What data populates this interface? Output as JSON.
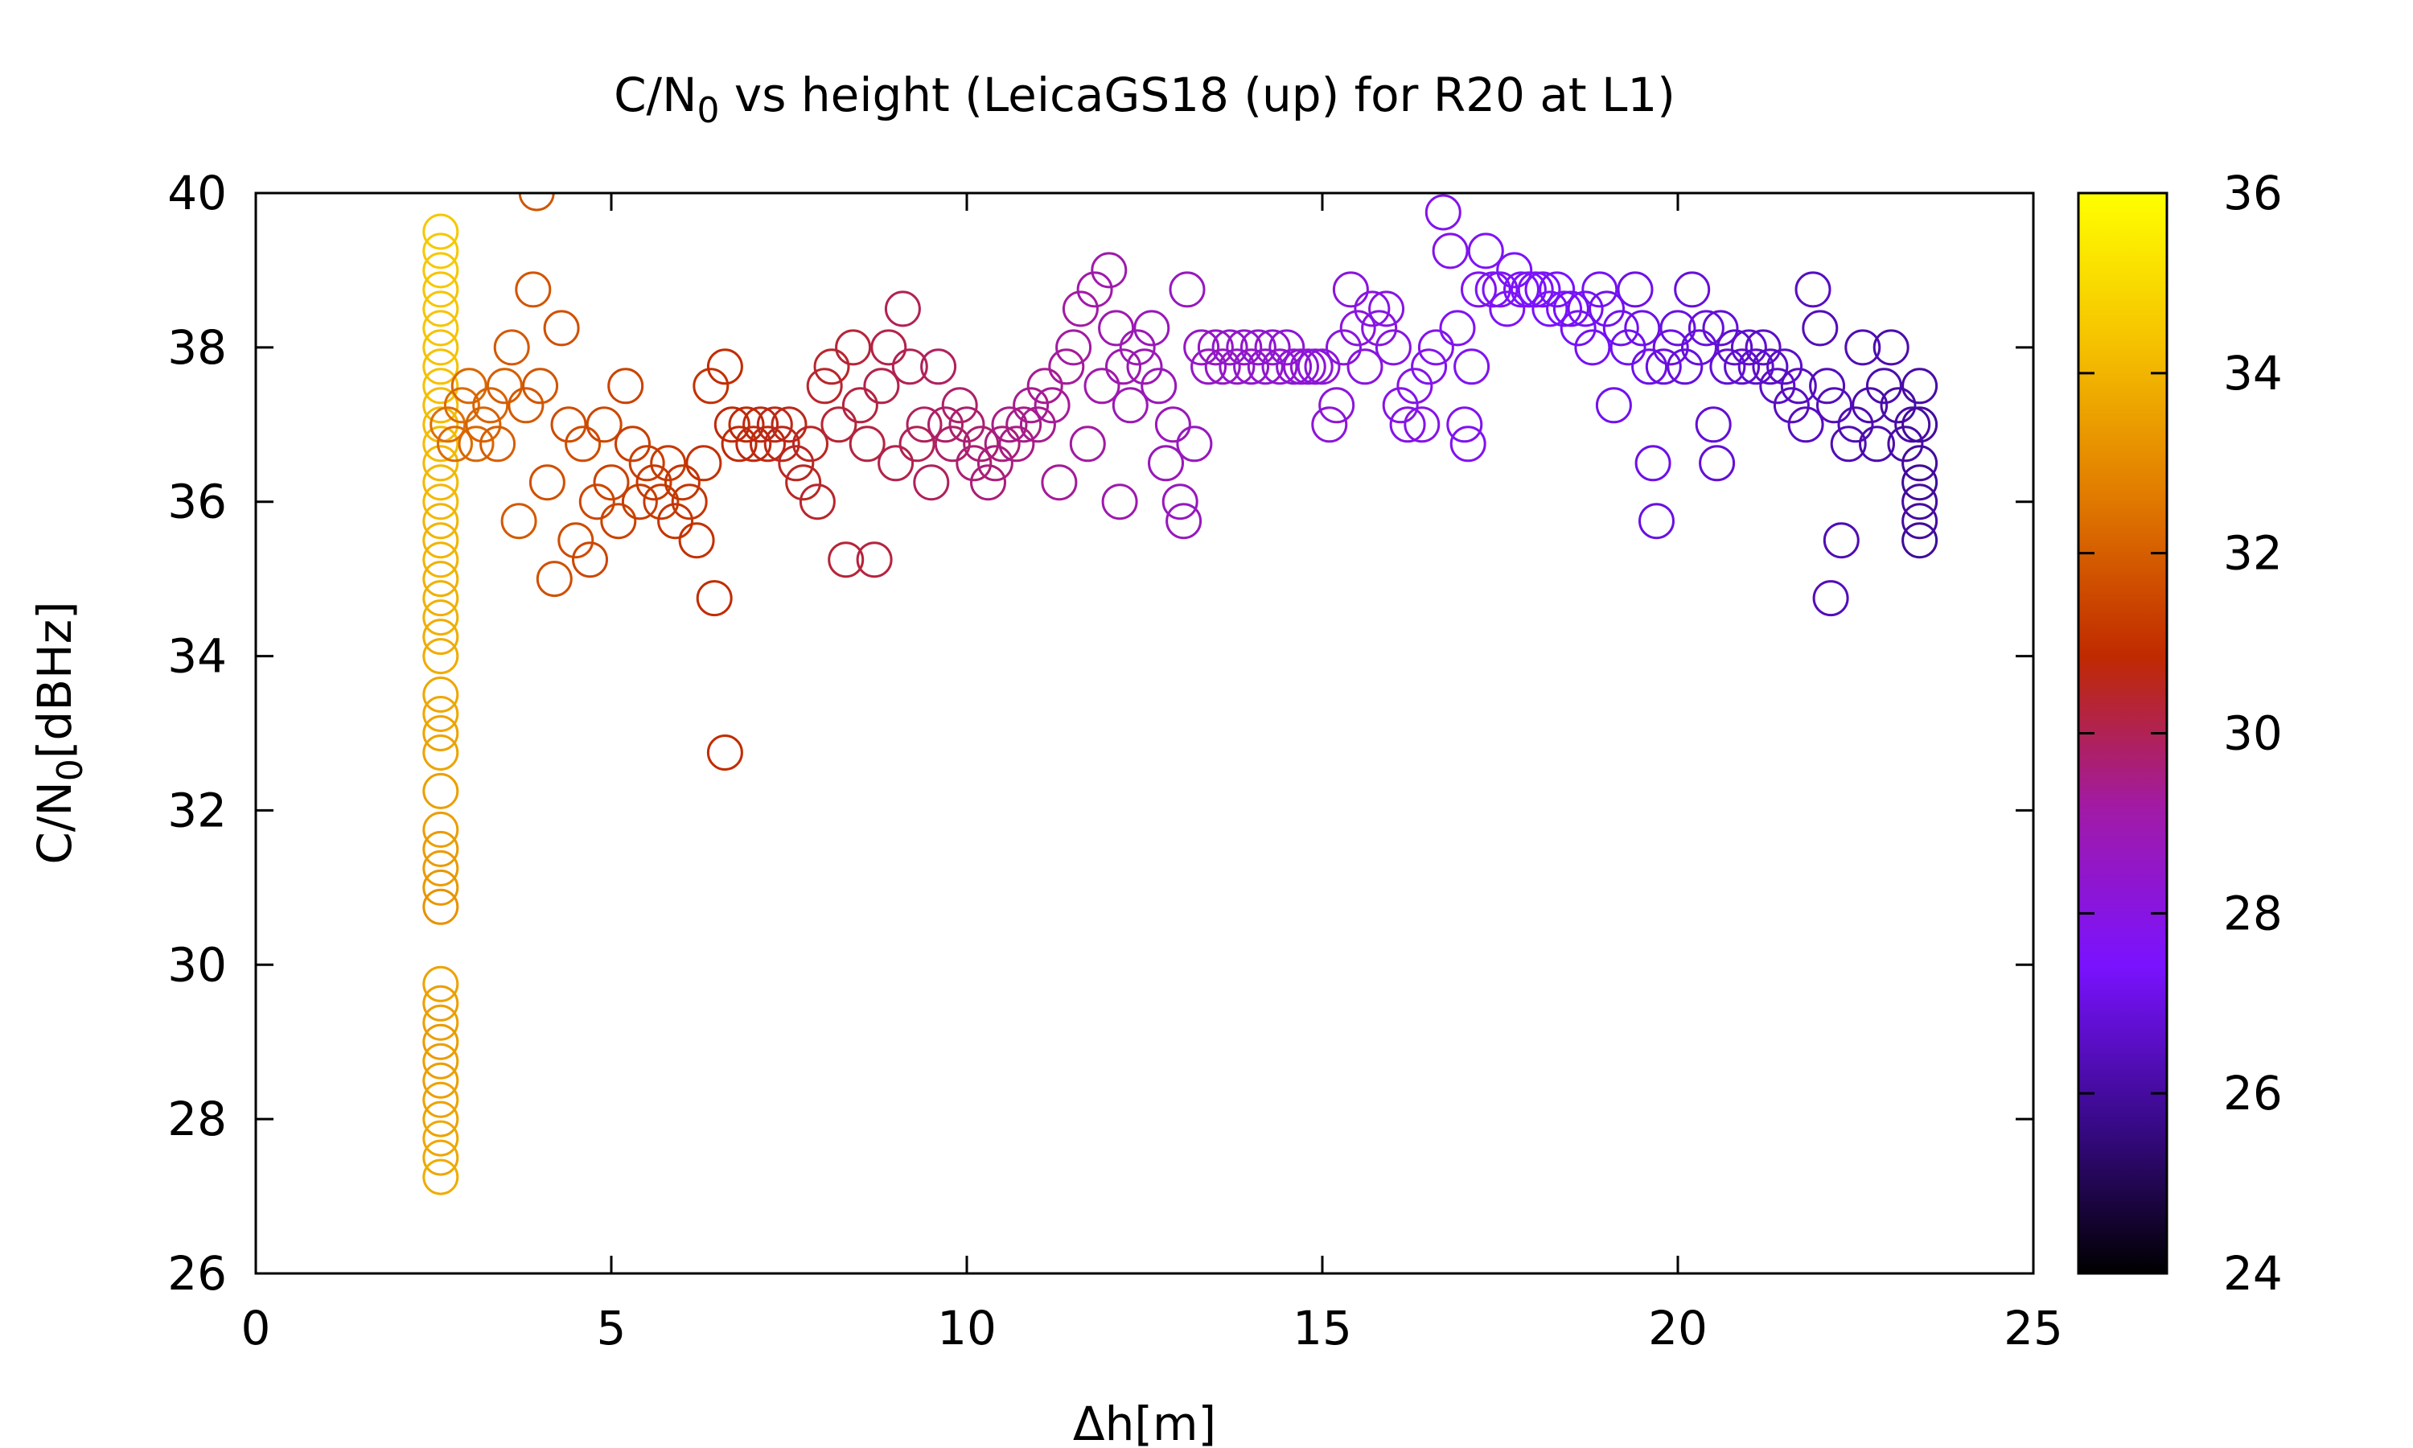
{
  "chart_data": {
    "type": "scatter",
    "title": {
      "prefix": "C/N",
      "subscript": "0",
      "suffix": " vs height (LeicaGS18 (up) for R20 at L1)"
    },
    "xlabel": "Δh[m]",
    "ylabel": {
      "prefix": "C/N",
      "subscript": "0",
      "suffix": "[dBHz]"
    },
    "xlim": [
      0,
      25
    ],
    "ylim": [
      26,
      40
    ],
    "xticks": [
      0,
      5,
      10,
      15,
      20,
      25
    ],
    "yticks": [
      26,
      28,
      30,
      32,
      34,
      36,
      38,
      40
    ],
    "colorbar": {
      "range": [
        24,
        36
      ],
      "ticks": [
        24,
        26,
        28,
        30,
        32,
        34,
        36
      ],
      "palette": [
        "#000000",
        "#3a0a8c",
        "#7a12ff",
        "#a11aa8",
        "#c02a00",
        "#e07800",
        "#f5c000",
        "#ffff00"
      ]
    },
    "series_marker": "open-circle",
    "points": [
      [
        2.6,
        39.5,
        34.5
      ],
      [
        2.6,
        39.25,
        34.5
      ],
      [
        2.6,
        39.0,
        34.5
      ],
      [
        2.6,
        38.75,
        34.4
      ],
      [
        2.6,
        38.5,
        34.4
      ],
      [
        2.6,
        38.25,
        34.4
      ],
      [
        2.6,
        38.0,
        34.3
      ],
      [
        2.6,
        37.75,
        34.3
      ],
      [
        2.6,
        37.5,
        34.3
      ],
      [
        2.6,
        37.25,
        34.2
      ],
      [
        2.6,
        37.0,
        34.2
      ],
      [
        2.6,
        36.75,
        34.2
      ],
      [
        2.6,
        36.5,
        34.1
      ],
      [
        2.6,
        36.25,
        34.1
      ],
      [
        2.6,
        36.0,
        34.1
      ],
      [
        2.6,
        35.75,
        34.0
      ],
      [
        2.6,
        35.5,
        34.0
      ],
      [
        2.6,
        35.25,
        34.0
      ],
      [
        2.6,
        35.0,
        33.9
      ],
      [
        2.6,
        34.75,
        33.9
      ],
      [
        2.6,
        34.5,
        33.9
      ],
      [
        2.6,
        34.25,
        33.8
      ],
      [
        2.6,
        34.0,
        33.8
      ],
      [
        2.6,
        33.5,
        33.7
      ],
      [
        2.6,
        33.25,
        33.7
      ],
      [
        2.6,
        33.0,
        33.6
      ],
      [
        2.6,
        32.75,
        33.6
      ],
      [
        2.6,
        32.25,
        33.5
      ],
      [
        2.6,
        31.75,
        33.5
      ],
      [
        2.6,
        31.5,
        33.4
      ],
      [
        2.6,
        31.25,
        33.4
      ],
      [
        2.6,
        31.0,
        33.3
      ],
      [
        2.6,
        30.75,
        33.2
      ],
      [
        2.6,
        29.75,
        33.6
      ],
      [
        2.6,
        29.5,
        33.5
      ],
      [
        2.6,
        29.25,
        33.5
      ],
      [
        2.6,
        29.0,
        33.4
      ],
      [
        2.6,
        28.75,
        33.5
      ],
      [
        2.6,
        28.5,
        33.5
      ],
      [
        2.6,
        28.25,
        33.6
      ],
      [
        2.6,
        28.0,
        33.6
      ],
      [
        2.6,
        27.75,
        33.7
      ],
      [
        2.6,
        27.5,
        33.7
      ],
      [
        2.6,
        27.25,
        33.8
      ],
      [
        2.7,
        37.0,
        32.4
      ],
      [
        2.8,
        36.75,
        32.3
      ],
      [
        2.9,
        37.25,
        32.3
      ],
      [
        3.0,
        37.5,
        32.2
      ],
      [
        3.1,
        36.75,
        32.2
      ],
      [
        3.2,
        37.0,
        32.1
      ],
      [
        3.3,
        37.25,
        32.1
      ],
      [
        3.4,
        36.75,
        32.0
      ],
      [
        3.5,
        37.5,
        32.0
      ],
      [
        3.6,
        38.0,
        31.9
      ],
      [
        3.7,
        35.75,
        31.9
      ],
      [
        3.8,
        37.25,
        31.9
      ],
      [
        3.9,
        38.75,
        31.8
      ],
      [
        3.95,
        40.0,
        31.8
      ],
      [
        4.0,
        37.5,
        31.8
      ],
      [
        4.1,
        36.25,
        31.7
      ],
      [
        4.2,
        35.0,
        31.7
      ],
      [
        4.3,
        38.25,
        31.7
      ],
      [
        4.4,
        37.0,
        31.6
      ],
      [
        4.5,
        35.5,
        31.6
      ],
      [
        4.6,
        36.75,
        31.6
      ],
      [
        4.7,
        35.25,
        31.5
      ],
      [
        4.8,
        36.0,
        31.5
      ],
      [
        4.9,
        37.0,
        31.5
      ],
      [
        5.0,
        36.25,
        31.4
      ],
      [
        5.1,
        35.75,
        31.4
      ],
      [
        5.2,
        37.5,
        31.4
      ],
      [
        5.3,
        36.75,
        31.3
      ],
      [
        5.4,
        36.0,
        31.3
      ],
      [
        5.5,
        36.5,
        31.3
      ],
      [
        5.6,
        36.25,
        31.2
      ],
      [
        5.7,
        36.0,
        31.2
      ],
      [
        5.8,
        36.5,
        31.2
      ],
      [
        5.9,
        35.75,
        31.1
      ],
      [
        6.0,
        36.25,
        31.1
      ],
      [
        6.1,
        36.0,
        31.1
      ],
      [
        6.2,
        35.5,
        31.0
      ],
      [
        6.3,
        36.5,
        31.0
      ],
      [
        6.4,
        37.5,
        31.0
      ],
      [
        6.45,
        34.75,
        30.9
      ],
      [
        6.6,
        37.75,
        30.9
      ],
      [
        6.6,
        32.75,
        30.9
      ],
      [
        6.7,
        37.0,
        30.8
      ],
      [
        6.8,
        36.75,
        30.8
      ],
      [
        6.9,
        37.0,
        30.8
      ],
      [
        7.0,
        36.75,
        30.7
      ],
      [
        7.1,
        37.0,
        30.7
      ],
      [
        7.2,
        36.75,
        30.7
      ],
      [
        7.3,
        37.0,
        30.6
      ],
      [
        7.4,
        36.75,
        30.6
      ],
      [
        7.5,
        37.0,
        30.6
      ],
      [
        7.6,
        36.5,
        30.5
      ],
      [
        7.7,
        36.25,
        30.5
      ],
      [
        7.8,
        36.75,
        30.5
      ],
      [
        7.9,
        36.0,
        30.4
      ],
      [
        8.0,
        37.5,
        30.4
      ],
      [
        8.1,
        37.75,
        30.4
      ],
      [
        8.2,
        37.0,
        30.3
      ],
      [
        8.3,
        35.25,
        30.3
      ],
      [
        8.4,
        38.0,
        30.3
      ],
      [
        8.5,
        37.25,
        30.2
      ],
      [
        8.6,
        36.75,
        30.2
      ],
      [
        8.7,
        35.25,
        30.2
      ],
      [
        8.8,
        37.5,
        30.1
      ],
      [
        8.9,
        38.0,
        30.1
      ],
      [
        9.0,
        36.5,
        30.1
      ],
      [
        9.1,
        38.5,
        30.0
      ],
      [
        9.2,
        37.75,
        30.0
      ],
      [
        9.3,
        36.75,
        30.0
      ],
      [
        9.4,
        37.0,
        29.9
      ],
      [
        9.5,
        36.25,
        29.9
      ],
      [
        9.6,
        37.75,
        29.9
      ],
      [
        9.7,
        37.0,
        29.8
      ],
      [
        9.8,
        36.75,
        29.8
      ],
      [
        9.9,
        37.25,
        29.8
      ],
      [
        10.0,
        37.0,
        29.7
      ],
      [
        10.1,
        36.5,
        29.7
      ],
      [
        10.2,
        36.75,
        29.7
      ],
      [
        10.3,
        36.25,
        29.6
      ],
      [
        10.4,
        36.5,
        29.6
      ],
      [
        10.5,
        36.75,
        29.6
      ],
      [
        10.6,
        37.0,
        29.5
      ],
      [
        10.7,
        36.75,
        29.5
      ],
      [
        10.8,
        37.0,
        29.5
      ],
      [
        10.9,
        37.25,
        29.4
      ],
      [
        11.0,
        37.0,
        29.4
      ],
      [
        11.1,
        37.5,
        29.4
      ],
      [
        11.2,
        37.25,
        29.3
      ],
      [
        11.3,
        36.25,
        29.3
      ],
      [
        11.4,
        37.75,
        29.3
      ],
      [
        11.5,
        38.0,
        29.2
      ],
      [
        11.6,
        38.5,
        29.2
      ],
      [
        11.7,
        36.75,
        29.2
      ],
      [
        11.8,
        38.75,
        29.1
      ],
      [
        11.9,
        37.5,
        29.1
      ],
      [
        12.0,
        39.0,
        29.1
      ],
      [
        12.1,
        38.25,
        29.0
      ],
      [
        12.15,
        36.0,
        29.0
      ],
      [
        12.2,
        37.75,
        29.0
      ],
      [
        12.3,
        37.25,
        28.9
      ],
      [
        12.4,
        38.0,
        28.9
      ],
      [
        12.5,
        37.75,
        28.9
      ],
      [
        12.6,
        38.25,
        28.8
      ],
      [
        12.7,
        37.5,
        28.8
      ],
      [
        12.8,
        36.5,
        28.8
      ],
      [
        12.9,
        37.0,
        28.8
      ],
      [
        13.0,
        36.0,
        28.7
      ],
      [
        13.05,
        35.75,
        28.7
      ],
      [
        13.1,
        38.75,
        28.7
      ],
      [
        13.2,
        36.75,
        28.7
      ],
      [
        13.3,
        38.0,
        28.6
      ],
      [
        13.4,
        37.75,
        28.6
      ],
      [
        13.5,
        38.0,
        28.6
      ],
      [
        13.6,
        37.75,
        28.6
      ],
      [
        13.7,
        38.0,
        28.5
      ],
      [
        13.8,
        37.75,
        28.5
      ],
      [
        13.9,
        38.0,
        28.5
      ],
      [
        14.0,
        37.75,
        28.5
      ],
      [
        14.1,
        38.0,
        28.4
      ],
      [
        14.2,
        37.75,
        28.4
      ],
      [
        14.3,
        38.0,
        28.4
      ],
      [
        14.4,
        37.75,
        28.4
      ],
      [
        14.5,
        38.0,
        28.3
      ],
      [
        14.6,
        37.75,
        28.3
      ],
      [
        14.7,
        37.75,
        28.3
      ],
      [
        14.8,
        37.75,
        28.3
      ],
      [
        14.9,
        37.75,
        28.2
      ],
      [
        15.0,
        37.75,
        28.2
      ],
      [
        15.1,
        37.0,
        28.2
      ],
      [
        15.2,
        37.25,
        28.2
      ],
      [
        15.3,
        38.0,
        28.1
      ],
      [
        15.4,
        38.75,
        28.1
      ],
      [
        15.5,
        38.25,
        28.1
      ],
      [
        15.6,
        37.75,
        28.1
      ],
      [
        15.7,
        38.5,
        28.0
      ],
      [
        15.8,
        38.25,
        28.0
      ],
      [
        15.9,
        38.5,
        28.0
      ],
      [
        16.0,
        38.0,
        28.0
      ],
      [
        16.1,
        37.25,
        27.9
      ],
      [
        16.2,
        37.0,
        27.9
      ],
      [
        16.3,
        37.5,
        27.9
      ],
      [
        16.4,
        37.0,
        27.9
      ],
      [
        16.5,
        37.75,
        27.8
      ],
      [
        16.6,
        38.0,
        27.8
      ],
      [
        16.7,
        39.75,
        27.8
      ],
      [
        16.8,
        39.25,
        27.8
      ],
      [
        16.9,
        38.25,
        27.7
      ],
      [
        17.0,
        37.0,
        27.7
      ],
      [
        17.05,
        36.75,
        27.7
      ],
      [
        17.1,
        37.75,
        27.7
      ],
      [
        17.2,
        38.75,
        27.7
      ],
      [
        17.3,
        39.25,
        27.6
      ],
      [
        17.4,
        38.75,
        27.6
      ],
      [
        17.5,
        38.75,
        27.6
      ],
      [
        17.6,
        38.5,
        27.6
      ],
      [
        17.7,
        39.0,
        27.5
      ],
      [
        17.8,
        38.75,
        27.5
      ],
      [
        17.9,
        38.75,
        27.5
      ],
      [
        18.0,
        38.75,
        27.5
      ],
      [
        18.1,
        38.75,
        27.4
      ],
      [
        18.2,
        38.5,
        27.4
      ],
      [
        18.3,
        38.75,
        27.4
      ],
      [
        18.4,
        38.5,
        27.4
      ],
      [
        18.5,
        38.5,
        27.3
      ],
      [
        18.6,
        38.25,
        27.3
      ],
      [
        18.7,
        38.5,
        27.3
      ],
      [
        18.8,
        38.0,
        27.3
      ],
      [
        18.9,
        38.75,
        27.3
      ],
      [
        19.0,
        38.5,
        27.2
      ],
      [
        19.1,
        37.25,
        27.2
      ],
      [
        19.2,
        38.25,
        27.2
      ],
      [
        19.3,
        38.0,
        27.2
      ],
      [
        19.4,
        38.75,
        27.1
      ],
      [
        19.5,
        38.25,
        27.1
      ],
      [
        19.6,
        37.75,
        27.1
      ],
      [
        19.65,
        36.5,
        27.1
      ],
      [
        19.7,
        35.75,
        27.0
      ],
      [
        19.8,
        37.75,
        27.0
      ],
      [
        19.9,
        38.0,
        27.0
      ],
      [
        20.0,
        38.25,
        27.0
      ],
      [
        20.1,
        37.75,
        26.9
      ],
      [
        20.2,
        38.75,
        26.9
      ],
      [
        20.3,
        38.0,
        26.9
      ],
      [
        20.4,
        38.25,
        26.9
      ],
      [
        20.5,
        37.0,
        26.8
      ],
      [
        20.55,
        36.5,
        26.8
      ],
      [
        20.6,
        38.25,
        26.8
      ],
      [
        20.7,
        37.75,
        26.8
      ],
      [
        20.8,
        38.0,
        26.7
      ],
      [
        20.9,
        37.75,
        26.7
      ],
      [
        21.0,
        38.0,
        26.7
      ],
      [
        21.1,
        37.75,
        26.7
      ],
      [
        21.2,
        38.0,
        26.6
      ],
      [
        21.3,
        37.75,
        26.6
      ],
      [
        21.4,
        37.5,
        26.6
      ],
      [
        21.5,
        37.75,
        26.6
      ],
      [
        21.6,
        37.25,
        26.5
      ],
      [
        21.7,
        37.5,
        26.5
      ],
      [
        21.8,
        37.0,
        26.5
      ],
      [
        21.9,
        38.75,
        26.5
      ],
      [
        22.0,
        38.25,
        26.4
      ],
      [
        22.1,
        37.5,
        26.4
      ],
      [
        22.15,
        34.75,
        26.4
      ],
      [
        22.2,
        37.25,
        26.4
      ],
      [
        22.3,
        35.5,
        26.3
      ],
      [
        22.4,
        36.75,
        26.3
      ],
      [
        22.5,
        37.0,
        26.3
      ],
      [
        22.6,
        38.0,
        26.3
      ],
      [
        22.7,
        37.25,
        26.2
      ],
      [
        22.8,
        36.75,
        26.2
      ],
      [
        22.9,
        37.5,
        26.2
      ],
      [
        23.0,
        38.0,
        26.2
      ],
      [
        23.1,
        37.25,
        26.1
      ],
      [
        23.2,
        36.75,
        26.1
      ],
      [
        23.3,
        37.0,
        26.1
      ],
      [
        23.4,
        37.5,
        26.1
      ],
      [
        23.4,
        37.0,
        26.0
      ],
      [
        23.4,
        36.5,
        26.0
      ],
      [
        23.4,
        36.0,
        26.0
      ],
      [
        23.4,
        35.75,
        26.0
      ],
      [
        23.4,
        35.5,
        25.9
      ],
      [
        23.4,
        36.25,
        25.9
      ]
    ]
  }
}
